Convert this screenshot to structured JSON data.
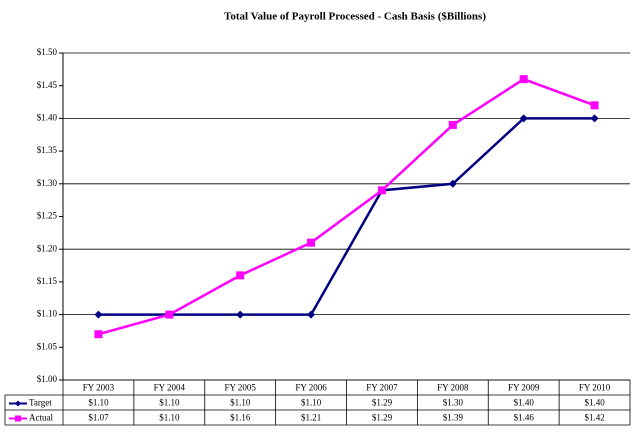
{
  "chart_data": {
    "type": "line",
    "title": "Total Value of Payroll Processed - Cash Basis ($Billions)",
    "categories": [
      "FY 2003",
      "FY 2004",
      "FY 2005",
      "FY 2006",
      "FY 2007",
      "FY 2008",
      "FY 2009",
      "FY 2010"
    ],
    "series": [
      {
        "name": "Target",
        "color": "#000080",
        "marker": "diamond",
        "values": [
          1.1,
          1.1,
          1.1,
          1.1,
          1.29,
          1.3,
          1.4,
          1.4
        ],
        "value_labels": [
          "$1.10",
          "$1.10",
          "$1.10",
          "$1.10",
          "$1.29",
          "$1.30",
          "$1.40",
          "$1.40"
        ]
      },
      {
        "name": "Actual",
        "color": "#ff00ff",
        "marker": "square",
        "values": [
          1.07,
          1.1,
          1.16,
          1.21,
          1.29,
          1.39,
          1.46,
          1.42
        ],
        "value_labels": [
          "$1.07",
          "$1.10",
          "$1.16",
          "$1.21",
          "$1.29",
          "$1.39",
          "$1.46",
          "$1.42"
        ]
      }
    ],
    "ylim": [
      1.0,
      1.5
    ],
    "yticks": [
      {
        "value": 1.0,
        "label": "$1.00"
      },
      {
        "value": 1.05,
        "label": "$1.05"
      },
      {
        "value": 1.1,
        "label": "$1.10"
      },
      {
        "value": 1.15,
        "label": "$1.15"
      },
      {
        "value": 1.2,
        "label": "$1.20"
      },
      {
        "value": 1.25,
        "label": "$1.25"
      },
      {
        "value": 1.3,
        "label": "$1.30"
      },
      {
        "value": 1.35,
        "label": "$1.35"
      },
      {
        "value": 1.4,
        "label": "$1.40"
      },
      {
        "value": 1.45,
        "label": "$1.45"
      },
      {
        "value": 1.5,
        "label": "$1.50"
      }
    ],
    "grid": true,
    "data_table": true
  }
}
